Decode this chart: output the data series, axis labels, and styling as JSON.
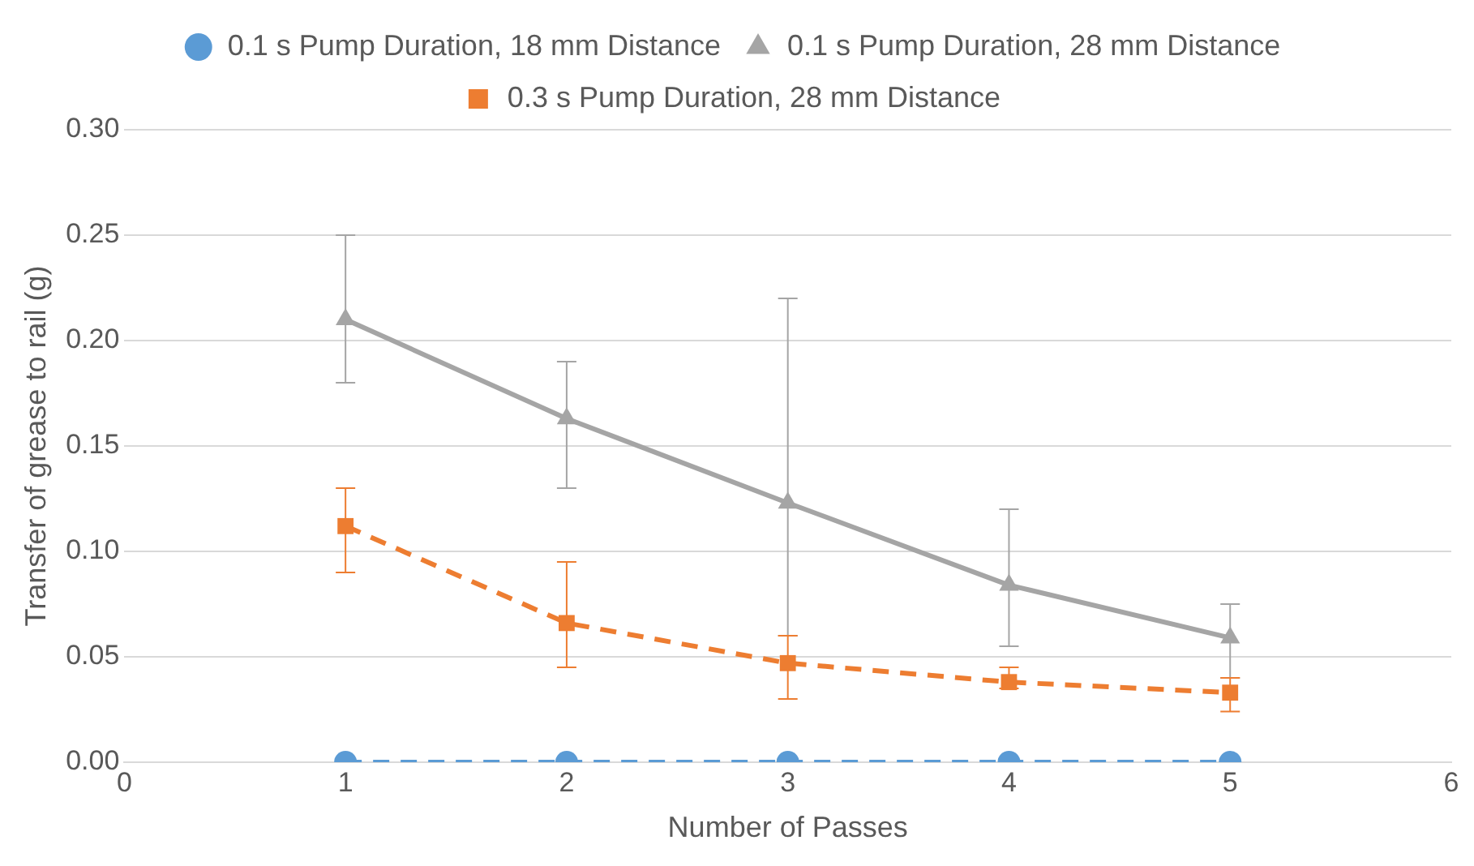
{
  "chart_data": {
    "type": "line",
    "xlabel": "Number of Passes",
    "ylabel": "Transfer of grease to rail (g)",
    "xlim": [
      0,
      6
    ],
    "xticks": [
      0,
      1,
      2,
      3,
      4,
      5,
      6
    ],
    "ylim": [
      0,
      0.3
    ],
    "yticks": [
      {
        "value": 0,
        "label": "0.00"
      },
      {
        "value": 0.05,
        "label": "0.05"
      },
      {
        "value": 0.1,
        "label": "0.10"
      },
      {
        "value": 0.15,
        "label": "0.15"
      },
      {
        "value": 0.2,
        "label": "0.20"
      },
      {
        "value": 0.25,
        "label": "0.25"
      },
      {
        "value": 0.3,
        "label": "0.30"
      }
    ],
    "grid": "y",
    "legend": "top",
    "x": [
      1,
      2,
      3,
      4,
      5
    ],
    "series": [
      {
        "name": "0.1 s Pump Duration, 18 mm Distance",
        "color": "#5b9bd5",
        "marker": "circle",
        "line_style": "dashed",
        "values": [
          0,
          0,
          0,
          0,
          0
        ]
      },
      {
        "name": "0.1 s Pump Duration, 28 mm Distance",
        "color": "#a5a5a5",
        "marker": "triangle",
        "line_style": "solid",
        "values": [
          0.21,
          0.163,
          0.123,
          0.084,
          0.059
        ],
        "errors": [
          [
            0.18,
            0.25
          ],
          [
            0.13,
            0.19
          ],
          [
            0.06,
            0.22
          ],
          [
            0.055,
            0.12
          ],
          [
            0.04,
            0.075
          ]
        ]
      },
      {
        "name": "0.3 s Pump Duration, 28 mm Distance",
        "color": "#ed7d31",
        "marker": "square",
        "line_style": "dashed",
        "values": [
          0.112,
          0.066,
          0.047,
          0.038,
          0.033
        ],
        "errors": [
          [
            0.09,
            0.13
          ],
          [
            0.045,
            0.095
          ],
          [
            0.03,
            0.06
          ],
          [
            0.035,
            0.045
          ],
          [
            0.024,
            0.04
          ]
        ]
      }
    ]
  }
}
